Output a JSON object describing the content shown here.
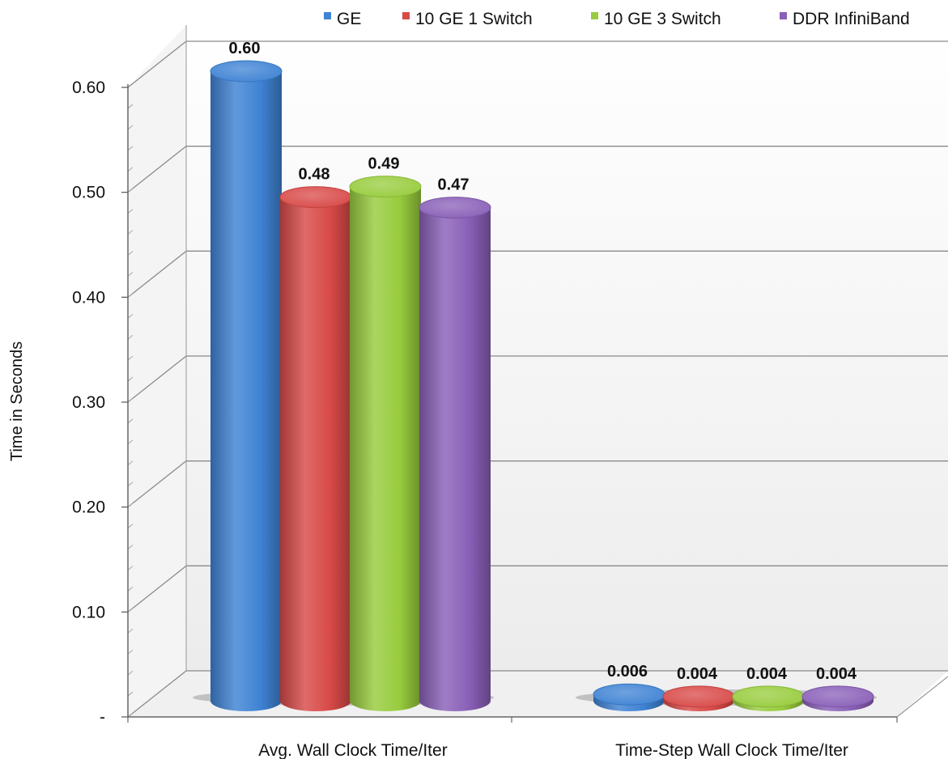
{
  "chart_data": {
    "type": "bar",
    "title": "",
    "xlabel": "",
    "ylabel": "Time in Seconds",
    "ylim": [
      0,
      0.6
    ],
    "y_ticks": [
      "-",
      "0.10",
      "0.20",
      "0.30",
      "0.40",
      "0.50",
      "0.60"
    ],
    "y_tick_values": [
      0,
      0.1,
      0.2,
      0.3,
      0.4,
      0.5,
      0.6
    ],
    "categories": [
      "Avg. Wall Clock Time/Iter",
      "Time-Step Wall Clock Time/Iter"
    ],
    "series": [
      {
        "name": "GE",
        "values": [
          0.6,
          0.006
        ],
        "labels": [
          "0.60",
          "0.006"
        ],
        "color": "#3f83d4"
      },
      {
        "name": "10 GE 1 Switch",
        "values": [
          0.48,
          0.004
        ],
        "labels": [
          "0.48",
          "0.004"
        ],
        "color": "#d84a48"
      },
      {
        "name": "10 GE 3 Switch",
        "values": [
          0.49,
          0.004
        ],
        "labels": [
          "0.49",
          "0.004"
        ],
        "color": "#98cc3e"
      },
      {
        "name": "DDR InfiniBand",
        "values": [
          0.47,
          0.004
        ],
        "labels": [
          "0.47",
          "0.004"
        ],
        "color": "#8a60b8"
      }
    ],
    "legend_position": "top-right",
    "grid": true,
    "style": "3d-cylinder"
  }
}
